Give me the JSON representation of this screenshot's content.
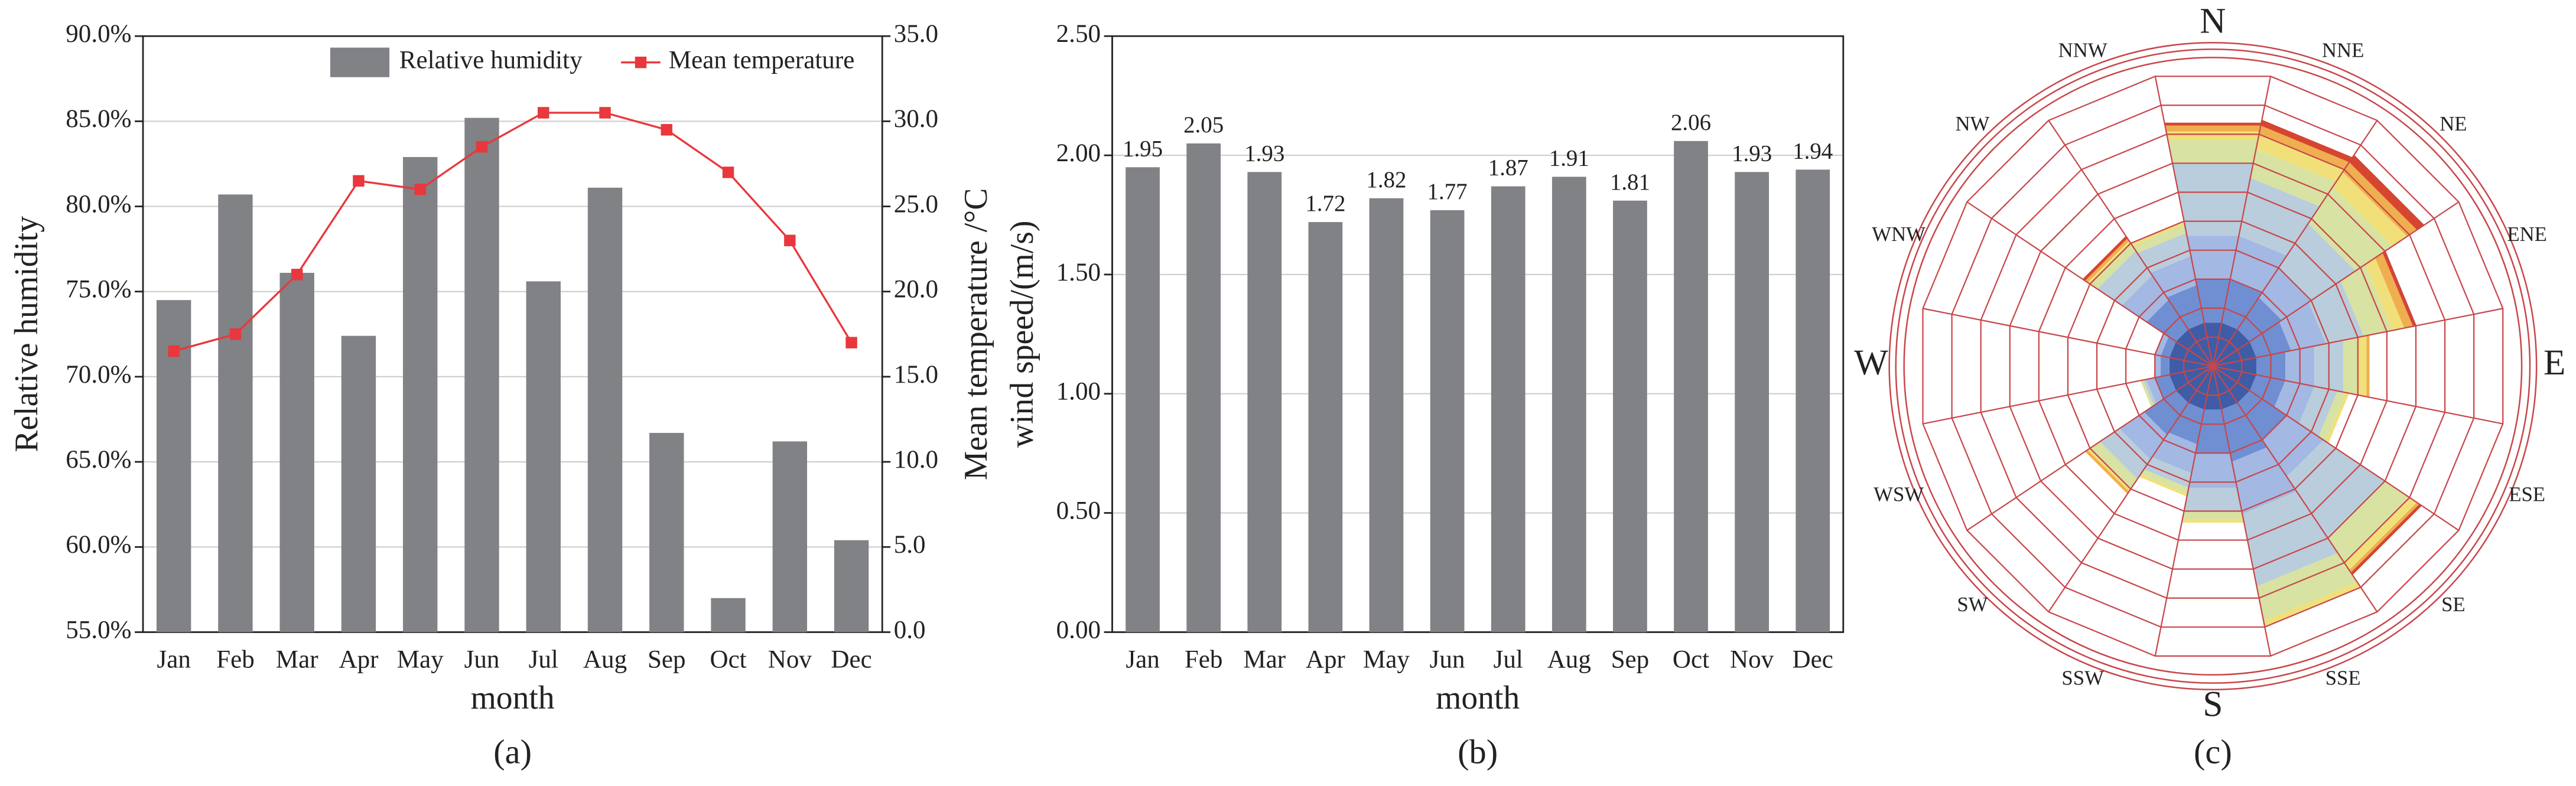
{
  "chart_data": [
    {
      "type": "combo",
      "panel_label": "(a)",
      "xlabel": "month",
      "ylabel": "Relative humidity",
      "y2label": "Mean temperature /°C",
      "categories": [
        "Jan",
        "Feb",
        "Mar",
        "Apr",
        "May",
        "Jun",
        "Jul",
        "Aug",
        "Sep",
        "Oct",
        "Nov",
        "Dec"
      ],
      "series": [
        {
          "name": "Relative humidity",
          "color": "#808285",
          "values": [
            74.5,
            80.7,
            76.1,
            72.4,
            82.9,
            85.2,
            75.6,
            81.1,
            66.7,
            57.0,
            66.2,
            60.4
          ]
        },
        {
          "name": "Mean temperature",
          "color": "#e8383d",
          "axis": "y2",
          "values": [
            16.5,
            17.5,
            21.0,
            26.5,
            26.0,
            28.5,
            30.5,
            30.5,
            29.5,
            27.0,
            23.0,
            17.0
          ]
        }
      ],
      "ylim": [
        55,
        90
      ],
      "yticks": [
        {
          "value": 55,
          "label": "55.0%"
        },
        {
          "value": 60,
          "label": "60.0%"
        },
        {
          "value": 65,
          "label": "65.0%"
        },
        {
          "value": 70,
          "label": "70.0%"
        },
        {
          "value": 75,
          "label": "75.0%"
        },
        {
          "value": 80,
          "label": "80.0%"
        },
        {
          "value": 85,
          "label": "85.0%"
        },
        {
          "value": 90,
          "label": "90.0%"
        }
      ],
      "y2lim": [
        0,
        35
      ],
      "y2ticks": [
        {
          "value": 0,
          "label": "0.0"
        },
        {
          "value": 5,
          "label": "5.0"
        },
        {
          "value": 10,
          "label": "10.0"
        },
        {
          "value": 15,
          "label": "15.0"
        },
        {
          "value": 20,
          "label": "20.0"
        },
        {
          "value": 25,
          "label": "25.0"
        },
        {
          "value": 30,
          "label": "30.0"
        },
        {
          "value": 35,
          "label": "35.0"
        }
      ],
      "grid": true,
      "legend": "top-right"
    },
    {
      "type": "bar",
      "panel_label": "(b)",
      "xlabel": "month",
      "ylabel": "wind speed/(m/s)",
      "color": "#808285",
      "categories": [
        "Jan",
        "Feb",
        "Mar",
        "Apr",
        "May",
        "Jun",
        "Jul",
        "Aug",
        "Sep",
        "Oct",
        "Nov",
        "Dec"
      ],
      "values": [
        1.95,
        2.05,
        1.93,
        1.72,
        1.82,
        1.77,
        1.87,
        1.91,
        1.81,
        2.06,
        1.93,
        1.94
      ],
      "ylim": [
        0,
        2.5
      ],
      "yticks": [
        {
          "value": 0,
          "label": "0.00"
        },
        {
          "value": 0.5,
          "label": "0.50"
        },
        {
          "value": 1,
          "label": "1.00"
        },
        {
          "value": 1.5,
          "label": "1.50"
        },
        {
          "value": 2,
          "label": "2.00"
        },
        {
          "value": 2.5,
          "label": "2.50"
        }
      ],
      "grid": true
    },
    {
      "type": "windrose",
      "panel_label": "(c)",
      "categories": [
        "N",
        "NNE",
        "NE",
        "ENE",
        "E",
        "ESE",
        "SE",
        "SSE",
        "S",
        "SSW",
        "SW",
        "WSW",
        "W",
        "WNW",
        "NW",
        "NNW"
      ],
      "rlim": [
        0,
        10
      ],
      "rticks": [
        1,
        2,
        3,
        4,
        5,
        6,
        7,
        8,
        9,
        10
      ],
      "series": [
        {
          "color": "#3f5ca6",
          "values": [
            1.5,
            1.5,
            1.5,
            1.5,
            1.5,
            1.5,
            1.5,
            1.5,
            1.5,
            1.5,
            1.5,
            1.5,
            1.5,
            1.5,
            1.5,
            1.5
          ]
        },
        {
          "color": "#6f8fd2",
          "values": [
            1.5,
            1.5,
            1.3,
            1.2,
            1.0,
            1.0,
            1.5,
            1.8,
            1.5,
            1.2,
            1.3,
            0.5,
            0.3,
            0.3,
            1.2,
            1.3
          ]
        },
        {
          "color": "#a3b8e3",
          "values": [
            1.5,
            1.5,
            1.2,
            1.2,
            1.0,
            1.0,
            1.5,
            1.8,
            1.2,
            1.0,
            1.0,
            0.3,
            0.2,
            0.2,
            1.0,
            1.0
          ]
        },
        {
          "color": "#b9cddc",
          "values": [
            2.5,
            2.0,
            1.8,
            1.3,
            1.0,
            0.8,
            2.5,
            2.5,
            0.8,
            0.5,
            0.8,
            0.1,
            0,
            0,
            1.0,
            0.8
          ]
        },
        {
          "color": "#d8e2a2",
          "values": [
            0.8,
            1.0,
            1.5,
            1.0,
            0.5,
            0.3,
            1.0,
            1.2,
            0.3,
            0.2,
            0.4,
            0.1,
            0,
            0,
            0.3,
            0.3
          ]
        },
        {
          "color": "#f1e07a",
          "values": [
            0.3,
            0.5,
            0.6,
            0.4,
            0.3,
            0.1,
            0.3,
            0.2,
            0.1,
            0.1,
            0.1,
            0,
            0,
            0,
            0.1,
            0.1
          ]
        },
        {
          "color": "#efae4f",
          "values": [
            0.2,
            0.3,
            0.4,
            0.3,
            0.1,
            0,
            0.1,
            0,
            0,
            0,
            0.1,
            0,
            0,
            0,
            0.1,
            0
          ]
        },
        {
          "color": "#d6452f",
          "values": [
            0.1,
            0.2,
            0.3,
            0.1,
            0,
            0,
            0.1,
            0,
            0,
            0,
            0,
            0,
            0,
            0,
            0.1,
            0
          ]
        }
      ]
    }
  ]
}
